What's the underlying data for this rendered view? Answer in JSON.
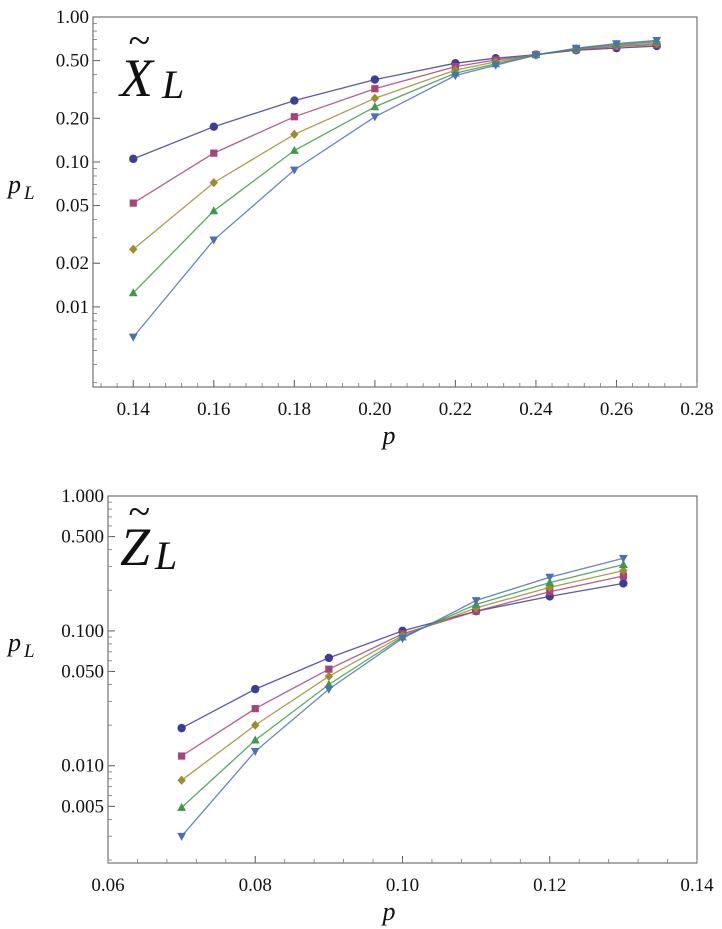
{
  "chart_data": [
    {
      "type": "line",
      "title_main": "X",
      "title_sub": "L",
      "title_accent": "~",
      "xlabel": "p",
      "ylabel_main": "p",
      "ylabel_sub": "L",
      "yscale": "log",
      "xlim": [
        0.13,
        0.28
      ],
      "ylim": [
        0.0028,
        1.0
      ],
      "x_ticks": [
        0.14,
        0.16,
        0.18,
        0.2,
        0.22,
        0.24,
        0.26,
        0.28
      ],
      "x_tick_labels": [
        "0.14",
        "0.16",
        "0.18",
        "0.20",
        "0.22",
        "0.24",
        "0.26",
        "0.28"
      ],
      "y_ticks": [
        1.0,
        0.5,
        0.2,
        0.1,
        0.05,
        0.02,
        0.01
      ],
      "y_tick_labels": [
        "1.00",
        "0.50",
        "0.20",
        "0.10",
        "0.05",
        "0.02",
        "0.01"
      ],
      "series": [
        {
          "name": "series-1",
          "color": "#3d3d9a",
          "marker": "circle",
          "x": [
            0.14,
            0.16,
            0.18,
            0.2,
            0.22,
            0.23,
            0.24,
            0.25,
            0.26,
            0.27
          ],
          "y": [
            0.105,
            0.175,
            0.265,
            0.37,
            0.48,
            0.52,
            0.55,
            0.59,
            0.61,
            0.63
          ]
        },
        {
          "name": "series-2",
          "color": "#a8427a",
          "marker": "square",
          "x": [
            0.14,
            0.16,
            0.18,
            0.2,
            0.22,
            0.23,
            0.24,
            0.25,
            0.26,
            0.27
          ],
          "y": [
            0.052,
            0.115,
            0.205,
            0.32,
            0.455,
            0.505,
            0.55,
            0.595,
            0.625,
            0.645
          ]
        },
        {
          "name": "series-3",
          "color": "#9c8c30",
          "marker": "diamond",
          "x": [
            0.14,
            0.16,
            0.18,
            0.2,
            0.22,
            0.23,
            0.24,
            0.25,
            0.26,
            0.27
          ],
          "y": [
            0.025,
            0.072,
            0.155,
            0.275,
            0.43,
            0.49,
            0.55,
            0.6,
            0.635,
            0.66
          ]
        },
        {
          "name": "series-4",
          "color": "#3e9a4a",
          "marker": "triangle-up",
          "x": [
            0.14,
            0.16,
            0.18,
            0.2,
            0.22,
            0.23,
            0.24,
            0.25,
            0.26,
            0.27
          ],
          "y": [
            0.0125,
            0.046,
            0.12,
            0.24,
            0.41,
            0.475,
            0.55,
            0.605,
            0.645,
            0.675
          ]
        },
        {
          "name": "series-5",
          "color": "#4a70b8",
          "marker": "triangle-down",
          "x": [
            0.14,
            0.16,
            0.18,
            0.2,
            0.22,
            0.23,
            0.24,
            0.25,
            0.26,
            0.27
          ],
          "y": [
            0.0062,
            0.029,
            0.088,
            0.205,
            0.395,
            0.465,
            0.545,
            0.61,
            0.655,
            0.69
          ]
        }
      ]
    },
    {
      "type": "line",
      "title_main": "Z",
      "title_sub": "L",
      "title_accent": "~",
      "xlabel": "p",
      "ylabel_main": "p",
      "ylabel_sub": "L",
      "yscale": "log",
      "xlim": [
        0.06,
        0.14
      ],
      "ylim": [
        0.0019,
        1.0
      ],
      "x_ticks": [
        0.06,
        0.08,
        0.1,
        0.12,
        0.14
      ],
      "x_tick_labels": [
        "0.06",
        "0.08",
        "0.10",
        "0.12",
        "0.14"
      ],
      "y_ticks": [
        1.0,
        0.5,
        0.1,
        0.05,
        0.01,
        0.005
      ],
      "y_tick_labels": [
        "1.000",
        "0.500",
        "0.100",
        "0.050",
        "0.010",
        "0.005"
      ],
      "series": [
        {
          "name": "series-1",
          "color": "#3d3d9a",
          "marker": "circle",
          "x": [
            0.07,
            0.08,
            0.09,
            0.1,
            0.11,
            0.12,
            0.13
          ],
          "y": [
            0.019,
            0.037,
            0.063,
            0.1,
            0.14,
            0.18,
            0.225
          ]
        },
        {
          "name": "series-2",
          "color": "#a8427a",
          "marker": "square",
          "x": [
            0.07,
            0.08,
            0.09,
            0.1,
            0.11,
            0.12,
            0.13
          ],
          "y": [
            0.0118,
            0.0265,
            0.052,
            0.095,
            0.14,
            0.195,
            0.255
          ]
        },
        {
          "name": "series-3",
          "color": "#9c8c30",
          "marker": "diamond",
          "x": [
            0.07,
            0.08,
            0.09,
            0.1,
            0.11,
            0.12,
            0.13
          ],
          "y": [
            0.0078,
            0.02,
            0.046,
            0.092,
            0.148,
            0.21,
            0.28
          ]
        },
        {
          "name": "series-4",
          "color": "#3e9a4a",
          "marker": "triangle-up",
          "x": [
            0.07,
            0.08,
            0.09,
            0.1,
            0.11,
            0.12,
            0.13
          ],
          "y": [
            0.0049,
            0.0155,
            0.04,
            0.09,
            0.157,
            0.228,
            0.31
          ]
        },
        {
          "name": "series-5",
          "color": "#4a70b8",
          "marker": "triangle-down",
          "x": [
            0.07,
            0.08,
            0.09,
            0.1,
            0.11,
            0.12,
            0.13
          ],
          "y": [
            0.003,
            0.0128,
            0.037,
            0.088,
            0.168,
            0.25,
            0.345
          ]
        }
      ]
    }
  ]
}
